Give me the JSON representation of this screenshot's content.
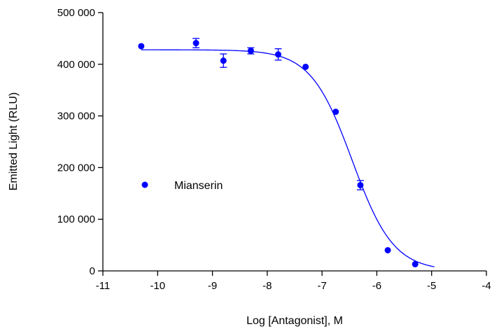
{
  "chart_data": {
    "type": "scatter",
    "title": "",
    "xlabel": "Log [Antagonist], M",
    "ylabel": "Emitted Light (RLU)",
    "xlim": [
      -11,
      -4
    ],
    "ylim": [
      0,
      500000
    ],
    "x_ticks": [
      -11,
      -10,
      -9,
      -8,
      -7,
      -6,
      -5,
      -4
    ],
    "x_tick_labels": [
      "-11",
      "-10",
      "-9",
      "-8",
      "-7",
      "-6",
      "-5",
      "-4"
    ],
    "y_ticks": [
      0,
      100000,
      200000,
      300000,
      400000,
      500000
    ],
    "y_tick_labels": [
      "0",
      "100 000",
      "200 000",
      "300 000",
      "400 000",
      "500 000"
    ],
    "grid": false,
    "legend_position": "center-left",
    "colors": {
      "series": "#0000ff",
      "axes": "#000000"
    },
    "series": [
      {
        "name": "Mianserin",
        "x": [
          -10.3,
          -9.3,
          -8.8,
          -8.3,
          -7.8,
          -7.3,
          -6.75,
          -6.3,
          -5.8,
          -5.3
        ],
        "y": [
          435000,
          441000,
          407000,
          426000,
          419000,
          395000,
          308000,
          166000,
          40000,
          13000
        ],
        "error": [
          0,
          9000,
          13000,
          6000,
          11000,
          0,
          0,
          9000,
          0,
          0
        ],
        "fit": {
          "model": "four-parameter logistic",
          "top": 428000,
          "bottom": 0,
          "log_ic50": -6.45,
          "hill_slope": -1.15,
          "x_range": [
            -10.3,
            -4.95
          ]
        }
      }
    ]
  }
}
